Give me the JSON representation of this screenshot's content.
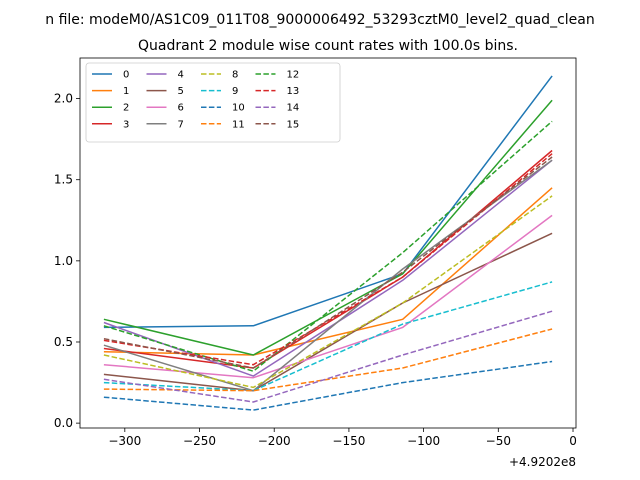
{
  "chart_data": {
    "type": "line",
    "suptitle": "n file: modeM0/AS1C09_011T08_9000006492_53293cztM0_level2_quad_clean",
    "title": "Quadrant 2 module wise count rates with 100.0s bins.",
    "xlabel": "",
    "ylabel": "",
    "x_offset_label": "+4.9202e8",
    "x": [
      -314,
      -214,
      -114,
      -14
    ],
    "xlim": [
      -330,
      2
    ],
    "ylim": [
      -0.03,
      2.25
    ],
    "x_ticks": [
      -300,
      -250,
      -200,
      -150,
      -100,
      -50,
      0
    ],
    "x_tick_labels": [
      "−300",
      "−250",
      "−200",
      "−150",
      "−100",
      "−50",
      "0"
    ],
    "y_ticks": [
      0.0,
      0.5,
      1.0,
      1.5,
      2.0
    ],
    "y_tick_labels": [
      "0.0",
      "0.5",
      "1.0",
      "1.5",
      "2.0"
    ],
    "legend_position": "top-left",
    "legend_columns": 4,
    "series": [
      {
        "name": "0",
        "color": "#1f77b4",
        "dash": "solid",
        "values": [
          0.59,
          0.6,
          0.92,
          2.14
        ]
      },
      {
        "name": "1",
        "color": "#ff7f0e",
        "dash": "solid",
        "values": [
          0.44,
          0.42,
          0.64,
          1.45
        ]
      },
      {
        "name": "2",
        "color": "#2ca02c",
        "dash": "solid",
        "values": [
          0.64,
          0.42,
          0.92,
          1.99
        ]
      },
      {
        "name": "3",
        "color": "#d62728",
        "dash": "solid",
        "values": [
          0.46,
          0.34,
          0.9,
          1.68
        ]
      },
      {
        "name": "4",
        "color": "#9467bd",
        "dash": "solid",
        "values": [
          0.62,
          0.29,
          0.88,
          1.62
        ]
      },
      {
        "name": "5",
        "color": "#8c564b",
        "dash": "solid",
        "values": [
          0.3,
          0.2,
          0.74,
          1.17
        ]
      },
      {
        "name": "6",
        "color": "#e377c2",
        "dash": "solid",
        "values": [
          0.36,
          0.28,
          0.59,
          1.28
        ]
      },
      {
        "name": "7",
        "color": "#7f7f7f",
        "dash": "solid",
        "values": [
          0.48,
          0.2,
          0.95,
          1.62
        ]
      },
      {
        "name": "8",
        "color": "#bcbd22",
        "dash": "dashed",
        "values": [
          0.42,
          0.22,
          0.74,
          1.4
        ]
      },
      {
        "name": "9",
        "color": "#17becf",
        "dash": "dashed",
        "values": [
          0.25,
          0.2,
          0.61,
          0.87
        ]
      },
      {
        "name": "10",
        "color": "#1f77b4",
        "dash": "dashed",
        "values": [
          0.16,
          0.08,
          0.25,
          0.38
        ]
      },
      {
        "name": "11",
        "color": "#ff7f0e",
        "dash": "dashed",
        "values": [
          0.21,
          0.2,
          0.34,
          0.58
        ]
      },
      {
        "name": "12",
        "color": "#2ca02c",
        "dash": "dashed",
        "values": [
          0.6,
          0.32,
          1.05,
          1.86
        ]
      },
      {
        "name": "13",
        "color": "#d62728",
        "dash": "dashed",
        "values": [
          0.51,
          0.36,
          0.9,
          1.66
        ]
      },
      {
        "name": "14",
        "color": "#9467bd",
        "dash": "dashed",
        "values": [
          0.27,
          0.13,
          0.42,
          0.69
        ]
      },
      {
        "name": "15",
        "color": "#8c564b",
        "dash": "dashed",
        "values": [
          0.52,
          0.34,
          0.93,
          1.64
        ]
      }
    ]
  }
}
